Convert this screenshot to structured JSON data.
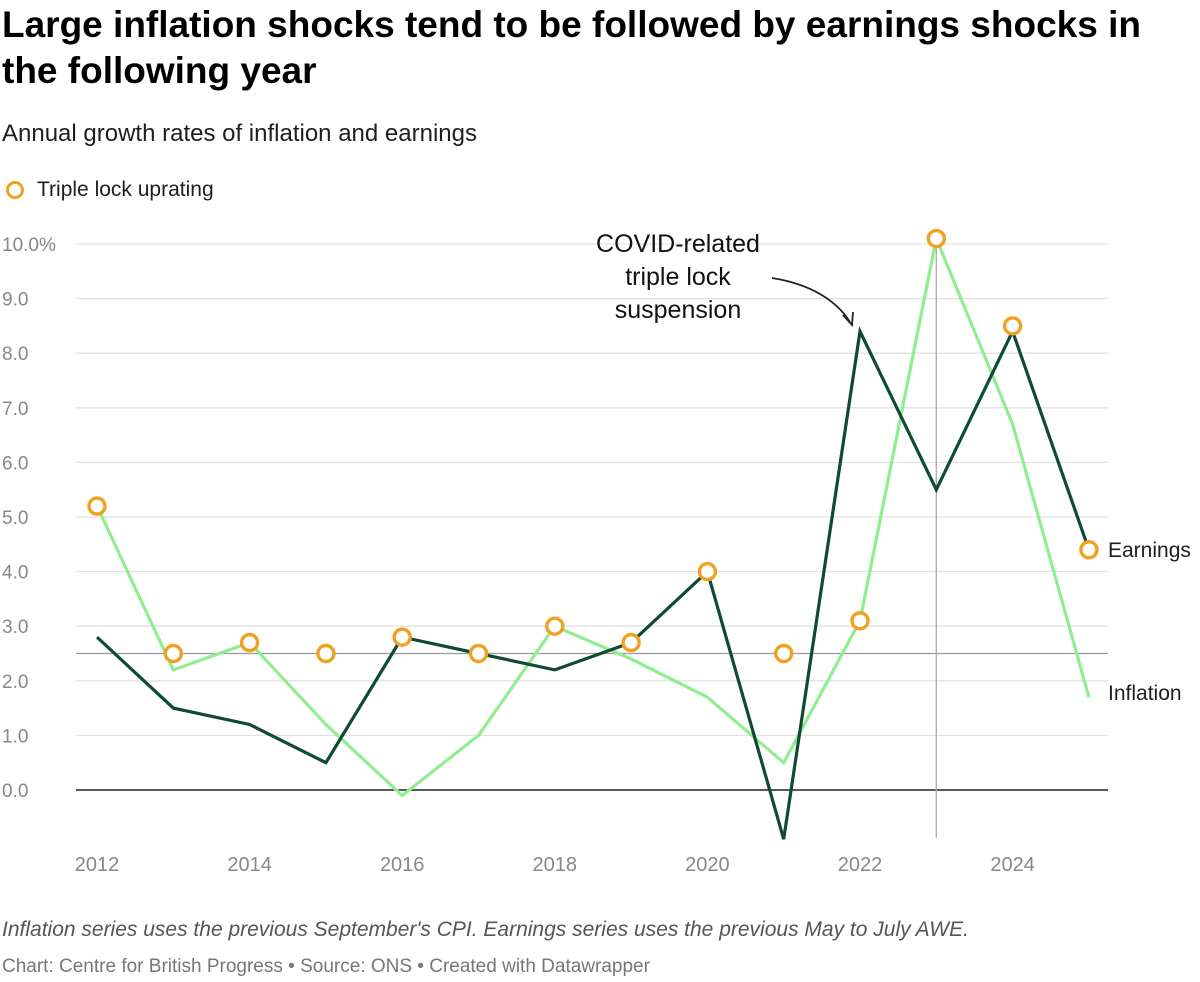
{
  "header": {
    "title": "Large inflation shocks tend to be followed by earnings shocks in the following year",
    "subtitle": "Annual growth rates of inflation and earnings"
  },
  "legend": {
    "label": "Triple lock uprating",
    "color": "#f0a122"
  },
  "footer": {
    "notes": "Inflation series uses the previous September's CPI. Earnings series uses the previous May to July AWE.",
    "credit": "Chart: Centre for British Progress • Source: ONS • Created with Datawrapper"
  },
  "chart_data": {
    "type": "line",
    "x": [
      2012,
      2013,
      2014,
      2015,
      2016,
      2017,
      2018,
      2019,
      2020,
      2021,
      2022,
      2023,
      2024,
      2025
    ],
    "x_ticks": [
      "2012",
      "2014",
      "2016",
      "2018",
      "2020",
      "2022",
      "2024"
    ],
    "y_ticks": [
      "10.0%",
      "9.0",
      "8.0",
      "7.0",
      "6.0",
      "5.0",
      "4.0",
      "3.0",
      "2.0",
      "1.0",
      "0.0"
    ],
    "ylim": [
      -0.9,
      10.0
    ],
    "grid": true,
    "reference_line": 2.5,
    "series": [
      {
        "name": "Inflation",
        "color": "#90ee90",
        "values": [
          5.2,
          2.2,
          2.7,
          1.2,
          -0.1,
          1.0,
          3.0,
          2.4,
          1.7,
          0.5,
          3.1,
          10.1,
          6.7,
          1.7
        ]
      },
      {
        "name": "Earnings",
        "color": "#0f4a35",
        "values": [
          2.8,
          1.5,
          1.2,
          0.5,
          2.8,
          2.5,
          2.2,
          2.7,
          4.0,
          -0.9,
          8.4,
          5.5,
          8.4,
          4.4
        ]
      }
    ],
    "triple_lock": {
      "name": "Triple lock uprating",
      "color": "#f0a122",
      "values": [
        5.2,
        2.5,
        2.7,
        2.5,
        2.8,
        2.5,
        3.0,
        2.7,
        4.0,
        2.5,
        3.1,
        10.1,
        8.5,
        4.4
      ]
    },
    "annotation": {
      "lines": [
        "COVID-related",
        "triple lock",
        "suspension"
      ]
    }
  }
}
